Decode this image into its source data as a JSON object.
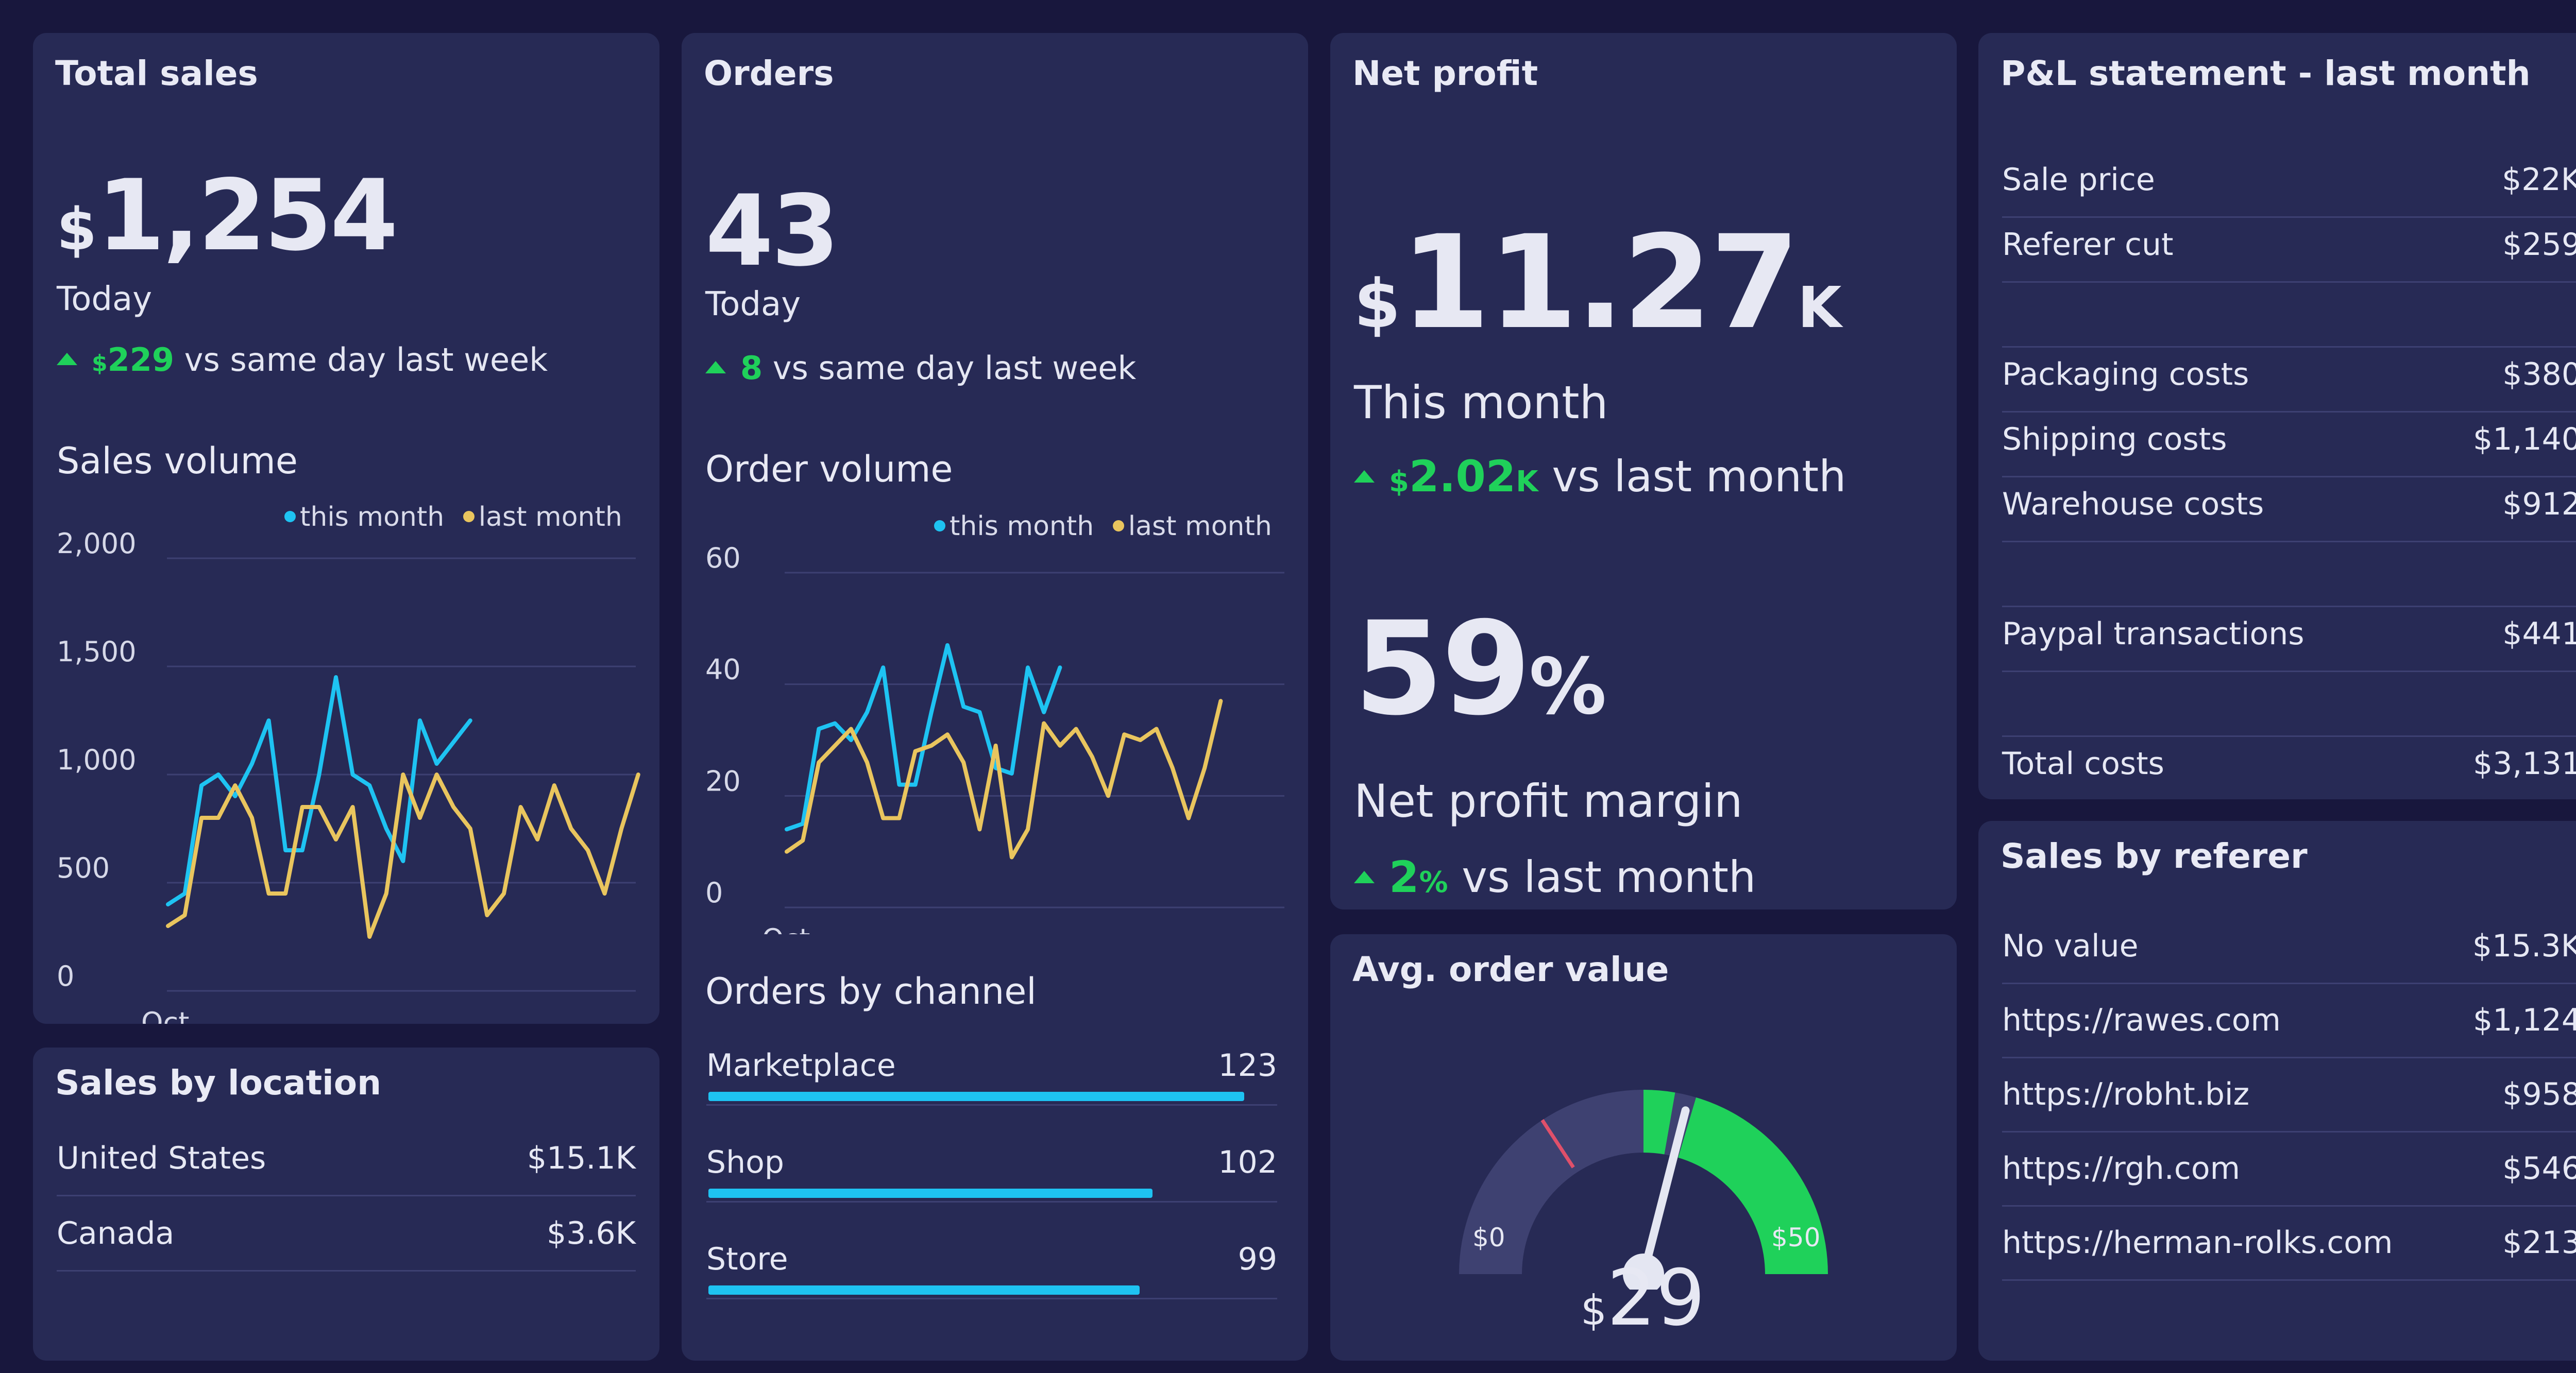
{
  "colors": {
    "accent_blue": "#1ec3f2",
    "accent_yellow": "#e9c55e",
    "positive_green": "#1fd15a",
    "panel_bg": "#272a55",
    "page_bg": "#18173d"
  },
  "total_sales": {
    "title": "Total sales",
    "currency": "$",
    "value": "1,254",
    "period": "Today",
    "delta_currency": "$",
    "delta_value": "229",
    "delta_text": "vs same day last week",
    "chart_title": "Sales volume"
  },
  "orders": {
    "title": "Orders",
    "value": "43",
    "period": "Today",
    "delta_value": "8",
    "delta_text": "vs same day last week",
    "chart_title": "Order volume",
    "channels_title": "Orders by channel",
    "channels": [
      {
        "label": "Marketplace",
        "value": "123",
        "ratio": 1.0
      },
      {
        "label": "Shop",
        "value": "102",
        "ratio": 0.829
      },
      {
        "label": "Store",
        "value": "99",
        "ratio": 0.805
      }
    ]
  },
  "net_profit": {
    "title": "Net profit",
    "currency": "$",
    "value": "11.27",
    "suffix": "K",
    "period": "This month",
    "delta_currency": "$",
    "delta_value": "2.02",
    "delta_suffix": "K",
    "delta_text": "vs last month",
    "margin_value": "59",
    "margin_suffix": "%",
    "margin_label": "Net profit margin",
    "margin_delta": "2",
    "margin_delta_suffix": "%",
    "margin_delta_text": "vs last month"
  },
  "avg_order": {
    "title": "Avg. order value",
    "min_label": "$0",
    "max_label": "$50",
    "currency": "$",
    "value": "29",
    "gauge_fraction": 0.58,
    "target_fraction": 0.5
  },
  "pl_statement": {
    "title": "P&L statement - last month",
    "rows": [
      {
        "label": "Sale price",
        "value": "$22K"
      },
      {
        "label": "Referer cut",
        "value": "$259"
      },
      {
        "label": "",
        "value": ""
      },
      {
        "label": "Packaging costs",
        "value": "$380"
      },
      {
        "label": "Shipping costs",
        "value": "$1,140"
      },
      {
        "label": "Warehouse costs",
        "value": "$912"
      },
      {
        "label": "",
        "value": ""
      },
      {
        "label": "Paypal transactions",
        "value": "$441"
      },
      {
        "label": "",
        "value": ""
      },
      {
        "label": "Total costs",
        "value": "$3,131"
      }
    ]
  },
  "sales_by_location": {
    "title": "Sales by location",
    "rows": [
      {
        "label": "United States",
        "value": "$15.1K"
      },
      {
        "label": "Canada",
        "value": "$3.6K"
      }
    ]
  },
  "sales_by_referer": {
    "title": "Sales by referer",
    "rows": [
      {
        "label": "No value",
        "value": "$15.3K"
      },
      {
        "label": "https://rawes.com",
        "value": "$1,124"
      },
      {
        "label": "https://robht.biz",
        "value": "$958"
      },
      {
        "label": "https://rgh.com",
        "value": "$546"
      },
      {
        "label": "https://herman-rolks.com",
        "value": "$213"
      }
    ]
  },
  "chart_data": [
    {
      "type": "line",
      "title": "Sales volume",
      "xlabel": "",
      "ylabel": "",
      "x_tick_labels": [
        "Oct"
      ],
      "y_ticks": [
        "0",
        "500",
        "1,000",
        "1,500",
        "2,000"
      ],
      "ylim": [
        0,
        2000
      ],
      "grid": true,
      "legend_placement": "top-right",
      "series": [
        {
          "name": "this month",
          "color": "#1ec3f2",
          "values": [
            400,
            450,
            950,
            1000,
            900,
            1050,
            1250,
            650,
            650,
            1000,
            1450,
            1000,
            950,
            750,
            600,
            1250,
            1050,
            1150,
            1250
          ]
        },
        {
          "name": "last month",
          "color": "#e9c55e",
          "values": [
            300,
            350,
            800,
            800,
            950,
            800,
            450,
            450,
            850,
            850,
            700,
            850,
            250,
            450,
            1000,
            800,
            1000,
            850,
            750,
            350,
            450,
            850,
            700,
            950,
            750,
            650,
            450,
            750,
            1000
          ]
        }
      ]
    },
    {
      "type": "line",
      "title": "Order volume",
      "xlabel": "",
      "ylabel": "",
      "x_tick_labels": [
        "Oct"
      ],
      "y_ticks": [
        "0",
        "20",
        "40",
        "60"
      ],
      "ylim": [
        0,
        60
      ],
      "grid": true,
      "legend_placement": "top-right",
      "series": [
        {
          "name": "this month",
          "color": "#1ec3f2",
          "values": [
            14,
            15,
            32,
            33,
            30,
            35,
            43,
            22,
            22,
            35,
            47,
            36,
            35,
            25,
            24,
            43,
            35,
            43
          ]
        },
        {
          "name": "last month",
          "color": "#e9c55e",
          "values": [
            10,
            12,
            26,
            29,
            32,
            26,
            16,
            16,
            28,
            29,
            31,
            26,
            14,
            29,
            9,
            14,
            33,
            29,
            32,
            27,
            20,
            31,
            30,
            32,
            25,
            16,
            25,
            37
          ]
        }
      ]
    }
  ],
  "legend": {
    "this_month": "this month",
    "last_month": "last month"
  }
}
